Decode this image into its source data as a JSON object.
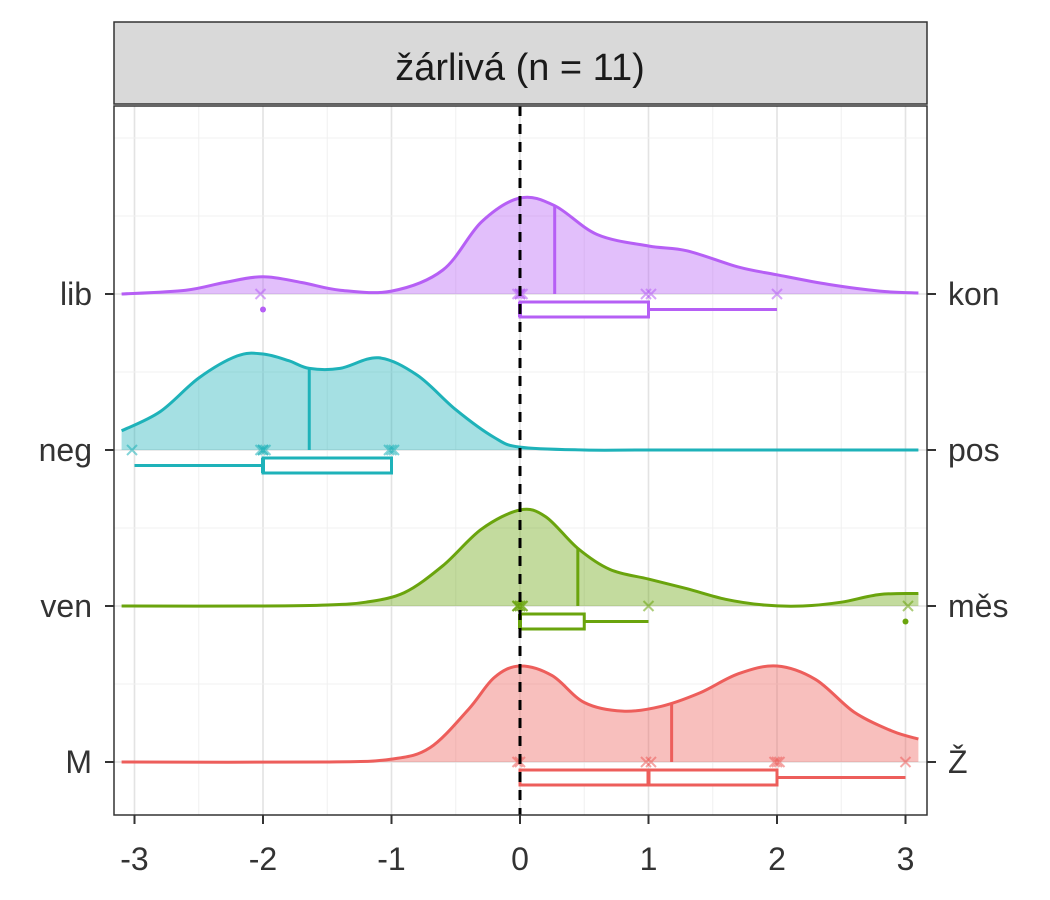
{
  "chart_data": {
    "type": "density-ridgeline",
    "title": "žárlivá (n = 11)",
    "xlim": [
      -3.15,
      3.15
    ],
    "x_ticks": [
      -3,
      -2,
      -1,
      0,
      1,
      2,
      3
    ],
    "x_tick_labels": [
      "-3",
      "-2",
      "-1",
      "0",
      "1",
      "2",
      "3"
    ],
    "reference_line_x": 0,
    "grid": true,
    "series": [
      {
        "left_label": "lib",
        "right_label": "kon",
        "color": "#b65ff5",
        "mean": 0.27,
        "points": [
          -2,
          0,
          0,
          0,
          0,
          1,
          1,
          2
        ],
        "box": {
          "min": 0,
          "q1": 0,
          "median": 0,
          "q3": 1,
          "max": 2,
          "outliers": [
            -2
          ]
        },
        "density": {
          "x": [
            -3.1,
            -2.6,
            -2.3,
            -2.0,
            -1.7,
            -1.4,
            -1.0,
            -0.6,
            -0.3,
            0.0,
            0.27,
            0.6,
            1.0,
            1.3,
            1.7,
            2.0,
            2.4,
            2.8,
            3.1
          ],
          "y": [
            0.0,
            0.04,
            0.12,
            0.18,
            0.12,
            0.04,
            0.03,
            0.25,
            0.75,
            1.0,
            0.92,
            0.62,
            0.5,
            0.45,
            0.28,
            0.2,
            0.1,
            0.03,
            0.01
          ]
        }
      },
      {
        "left_label": "neg",
        "right_label": "pos",
        "color": "#1eb2b9",
        "mean": -1.64,
        "points": [
          -3,
          -2,
          -2,
          -2,
          -2,
          -1,
          -1,
          -1
        ],
        "box": {
          "min": -3,
          "q1": -2,
          "median": -2,
          "q3": -1,
          "max": -1,
          "outliers": []
        },
        "density": {
          "x": [
            -3.1,
            -2.8,
            -2.5,
            -2.2,
            -2.0,
            -1.8,
            -1.64,
            -1.4,
            -1.1,
            -0.8,
            -0.5,
            -0.2,
            0.0,
            0.5,
            1.0,
            2.0,
            3.1
          ],
          "y": [
            0.2,
            0.4,
            0.75,
            0.98,
            1.0,
            0.93,
            0.85,
            0.85,
            0.96,
            0.78,
            0.42,
            0.13,
            0.03,
            0.0,
            0.0,
            0.0,
            0.0
          ]
        }
      },
      {
        "left_label": "ven",
        "right_label": "měs",
        "color": "#6aa40d",
        "mean": 0.45,
        "points": [
          0,
          0,
          0,
          0,
          0,
          0,
          0,
          1,
          3
        ],
        "box": {
          "min": 0,
          "q1": 0,
          "median": 0,
          "q3": 0.5,
          "max": 1,
          "outliers": [
            3
          ]
        },
        "density": {
          "x": [
            -3.1,
            -2.0,
            -1.5,
            -1.2,
            -0.9,
            -0.6,
            -0.3,
            0.0,
            0.2,
            0.45,
            0.7,
            1.0,
            1.3,
            1.6,
            1.9,
            2.2,
            2.5,
            2.8,
            3.1
          ],
          "y": [
            0.0,
            0.0,
            0.01,
            0.04,
            0.14,
            0.42,
            0.8,
            1.0,
            0.93,
            0.6,
            0.38,
            0.28,
            0.18,
            0.07,
            0.01,
            0.0,
            0.04,
            0.12,
            0.13
          ]
        }
      },
      {
        "left_label": "M",
        "right_label": "Ž",
        "color": "#ed5e5b",
        "mean": 1.18,
        "points": [
          0,
          0,
          1,
          1,
          2,
          2,
          2,
          3
        ],
        "box": {
          "min": 0,
          "q1": 0,
          "median": 1,
          "q3": 2,
          "max": 3,
          "outliers": []
        },
        "density": {
          "x": [
            -3.1,
            -1.5,
            -1.0,
            -0.7,
            -0.4,
            -0.2,
            0.0,
            0.25,
            0.5,
            0.8,
            1.1,
            1.4,
            1.7,
            2.0,
            2.3,
            2.6,
            2.9,
            3.1
          ],
          "y": [
            0.0,
            0.0,
            0.03,
            0.15,
            0.55,
            0.88,
            1.0,
            0.9,
            0.62,
            0.53,
            0.58,
            0.72,
            0.92,
            1.0,
            0.86,
            0.52,
            0.32,
            0.24
          ]
        }
      }
    ]
  }
}
